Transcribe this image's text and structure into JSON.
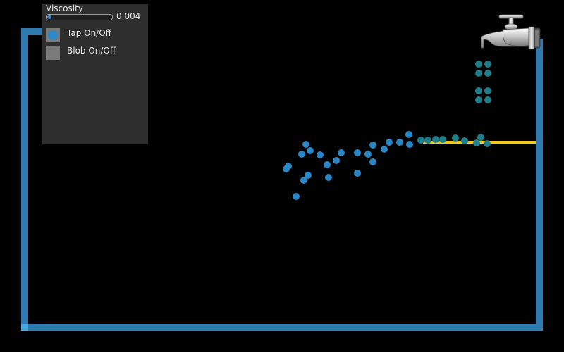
{
  "panel": {
    "viscosity_label": "Viscosity",
    "viscosity_value": "0.004",
    "viscosity_level": 0.04,
    "tap_toggle_label": "Tap On/Off",
    "tap_toggle_on": true,
    "blob_toggle_label": "Blob On/Off",
    "blob_toggle_on": false
  },
  "colors": {
    "container_wall": "#2f7bb0",
    "shelf": "#f5c81c",
    "fluid_particle_light": "#2a86c4",
    "fluid_particle_dark": "#1e7f8a",
    "panel_background": "#2e2e2e"
  },
  "icons": {
    "tap": "faucet-icon"
  }
}
